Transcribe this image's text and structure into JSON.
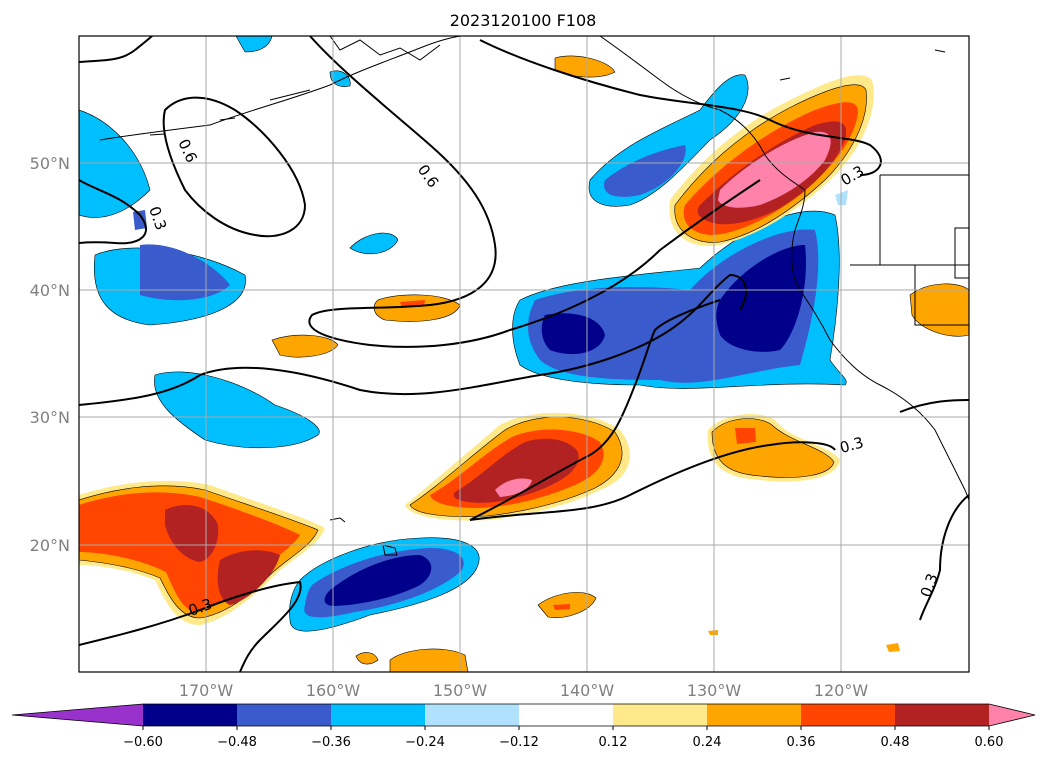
{
  "title": "2023120100 F108",
  "lat_labels": [
    "50°N",
    "40°N",
    "30°N",
    "20°N"
  ],
  "lon_labels": [
    "170°W",
    "160°W",
    "150°W",
    "140°W",
    "130°W",
    "120°W"
  ],
  "colorbar": {
    "ticks": [
      "−0.60",
      "−0.48",
      "−0.36",
      "−0.24",
      "−0.12",
      "0.12",
      "0.24",
      "0.36",
      "0.48",
      "0.60"
    ],
    "colors": [
      "#9932cc",
      "#00008b",
      "#3a5bcb",
      "#00bfff",
      "#b0e2ff",
      "#ffffff",
      "#ffe98a",
      "#ffa500",
      "#ff4500",
      "#b22222",
      "#ff82ab"
    ]
  },
  "contour_labels": [
    "0.6",
    "0.6",
    "0.3",
    "0.3",
    "0.3",
    "0.3",
    "0.3"
  ],
  "colors": {
    "grid": "#aaaaaa",
    "contour": "#000000",
    "axis_label": "#808080"
  }
}
